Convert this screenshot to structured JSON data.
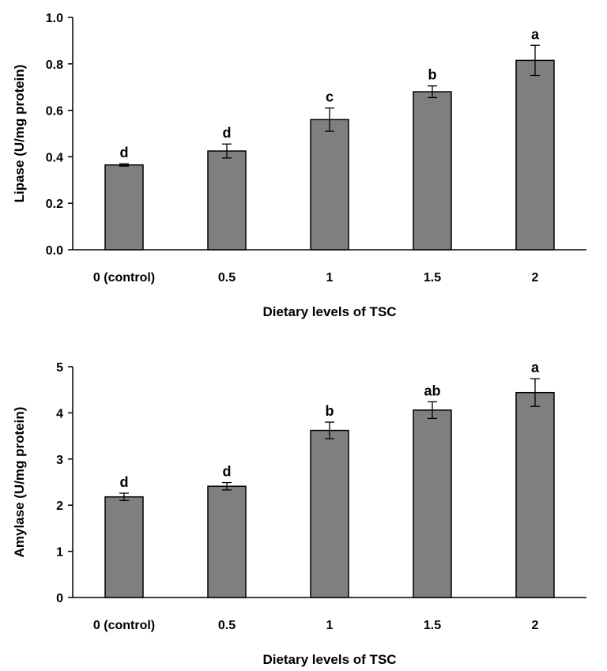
{
  "chart_data": [
    {
      "type": "bar",
      "categories": [
        "0 (control)",
        "0.5",
        "1",
        "1.5",
        "2"
      ],
      "values": [
        0.365,
        0.425,
        0.56,
        0.68,
        0.815
      ],
      "errors": [
        0.005,
        0.03,
        0.05,
        0.025,
        0.065
      ],
      "significance": [
        "d",
        "d",
        "c",
        "b",
        "a"
      ],
      "xlabel": "Dietary levels of TSC",
      "ylabel": "Lipase (U/mg protein)",
      "ylim": [
        0,
        1.0
      ],
      "yticks": [
        "0.0",
        "0.2",
        "0.4",
        "0.6",
        "0.8",
        "1.0"
      ],
      "grid": false,
      "legend": "none",
      "bar_color": "#7f7f7f"
    },
    {
      "type": "bar",
      "categories": [
        "0 (control)",
        "0.5",
        "1",
        "1.5",
        "2"
      ],
      "values": [
        2.18,
        2.41,
        3.62,
        4.06,
        4.44
      ],
      "errors": [
        0.08,
        0.08,
        0.18,
        0.18,
        0.3
      ],
      "significance": [
        "d",
        "d",
        "b",
        "ab",
        "a"
      ],
      "xlabel": "Dietary levels of TSC",
      "ylabel": "Amylase (U/mg protein)",
      "ylim": [
        0,
        5
      ],
      "yticks": [
        "0",
        "1",
        "2",
        "3",
        "4",
        "5"
      ],
      "grid": false,
      "legend": "none",
      "bar_color": "#7f7f7f"
    }
  ]
}
